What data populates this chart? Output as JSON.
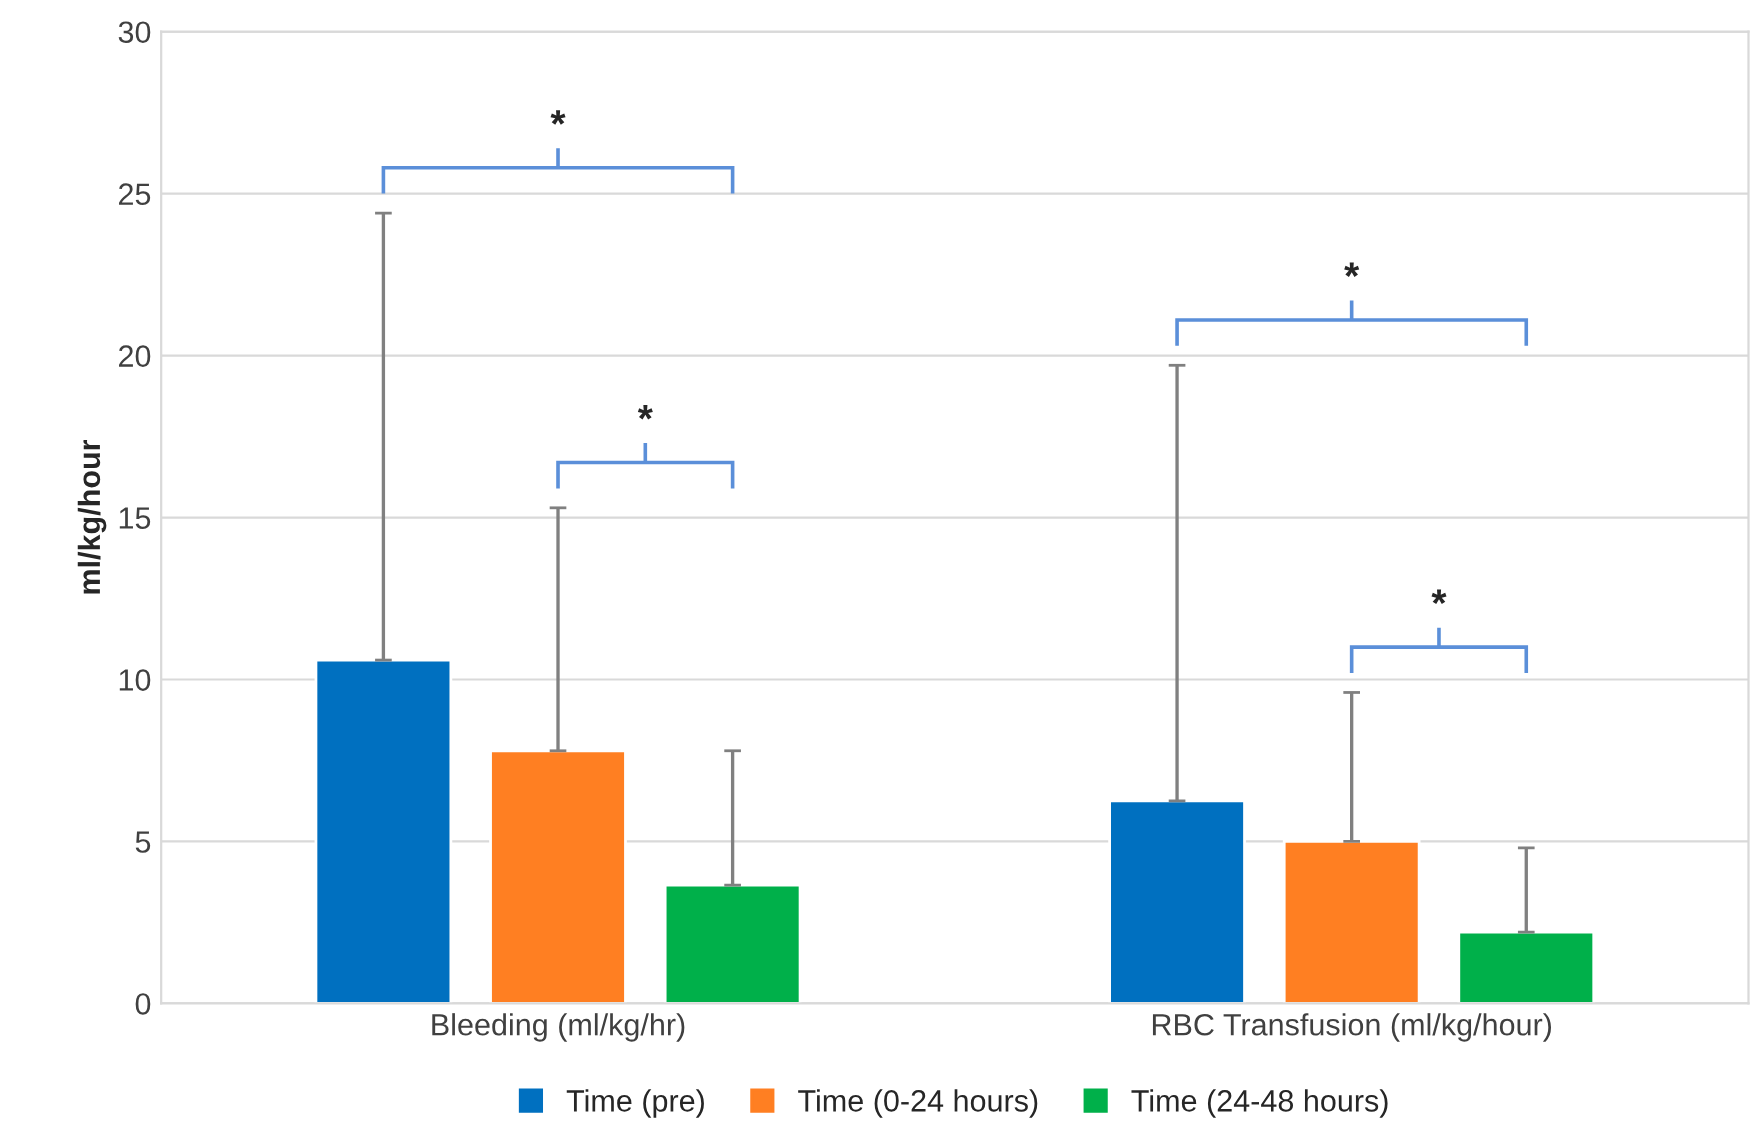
{
  "chart_data": {
    "type": "bar",
    "ylabel": "ml/kg/hour",
    "categories": [
      "Bleeding (ml/kg/hr)",
      "RBC Transfusion (ml/kg/hour)"
    ],
    "series": [
      {
        "name": "Time (pre)",
        "color": "#0070c0",
        "values": [
          10.6,
          6.25
        ],
        "errors": [
          [
            10.6,
            24.4
          ],
          [
            6.25,
            19.7
          ]
        ]
      },
      {
        "name": "Time (0-24 hours)",
        "color": "#ff7f22",
        "values": [
          7.8,
          5.0
        ],
        "errors": [
          [
            7.8,
            15.3
          ],
          [
            5.0,
            9.6
          ]
        ]
      },
      {
        "name": "Time (24-48 hours)",
        "color": "#00b04a",
        "values": [
          3.65,
          2.2
        ],
        "errors": [
          [
            3.65,
            7.8
          ],
          [
            2.2,
            4.8
          ]
        ]
      }
    ],
    "ylim": [
      0,
      30
    ],
    "yticks": [
      0,
      5,
      10,
      15,
      20,
      25,
      30
    ],
    "grid": "y",
    "legend": "bottom",
    "annotations": [
      "*",
      "*",
      "*",
      "*"
    ]
  }
}
